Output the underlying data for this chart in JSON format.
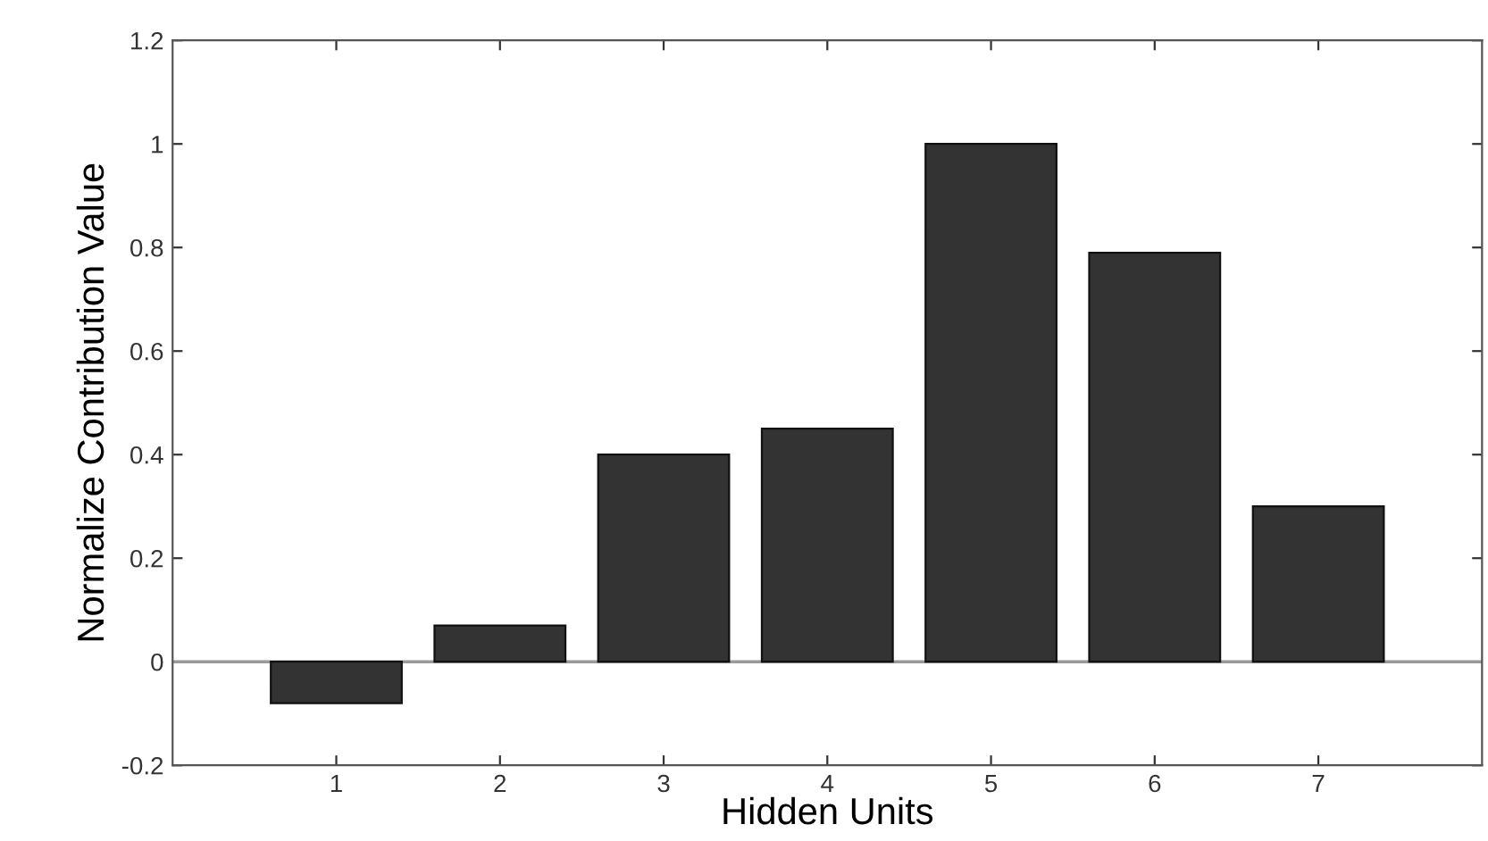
{
  "chart_data": {
    "type": "bar",
    "xlabel": "Hidden Units",
    "ylabel": "Normalize Contribution Value",
    "categories": [
      "1",
      "2",
      "3",
      "4",
      "5",
      "6",
      "7"
    ],
    "values": [
      -0.08,
      0.07,
      0.4,
      0.45,
      1.0,
      0.79,
      0.3
    ],
    "color": "#333333",
    "ylim": [
      -0.2,
      1.2
    ],
    "yticks": [
      {
        "value": -0.2,
        "label": "-0.2"
      },
      0,
      0.2,
      0.4,
      0.6,
      0.8,
      1,
      1.2
    ],
    "ref_lines": [
      {
        "axis": "y",
        "value": 0,
        "color": "#999999"
      }
    ],
    "grid": false
  }
}
